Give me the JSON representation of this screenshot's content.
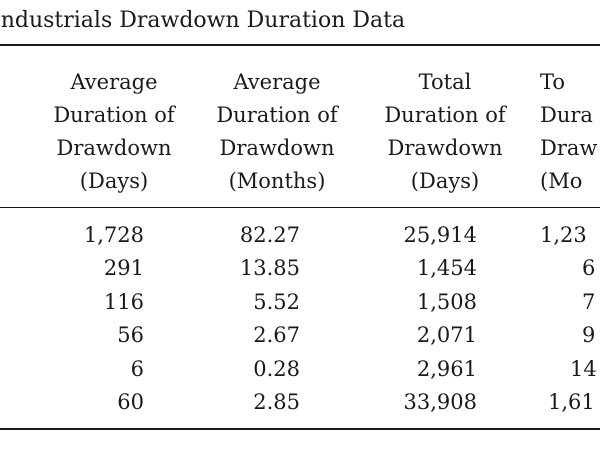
{
  "caption": "Industrials Drawdown Duration Data",
  "columns": [
    {
      "lines": [
        "Average",
        "Duration of",
        "Drawdown",
        "(Days)"
      ]
    },
    {
      "lines": [
        "Average",
        "Duration of",
        "Drawdown",
        "(Months)"
      ]
    },
    {
      "lines": [
        "Total",
        "Duration of",
        "Drawdown",
        "(Days)"
      ]
    },
    {
      "lines": [
        "To",
        "Dura",
        "Draw",
        "(Mo"
      ]
    }
  ],
  "rows": [
    [
      "1,728",
      "82.27",
      "25,914",
      "1,23"
    ],
    [
      "291",
      "13.85",
      "1,454",
      "6"
    ],
    [
      "116",
      "5.52",
      "1,508",
      "7"
    ],
    [
      "56",
      "2.67",
      "2,071",
      "9"
    ],
    [
      "6",
      "0.28",
      "2,961",
      "14"
    ],
    [
      "60",
      "2.85",
      "33,908",
      "1,61"
    ]
  ]
}
